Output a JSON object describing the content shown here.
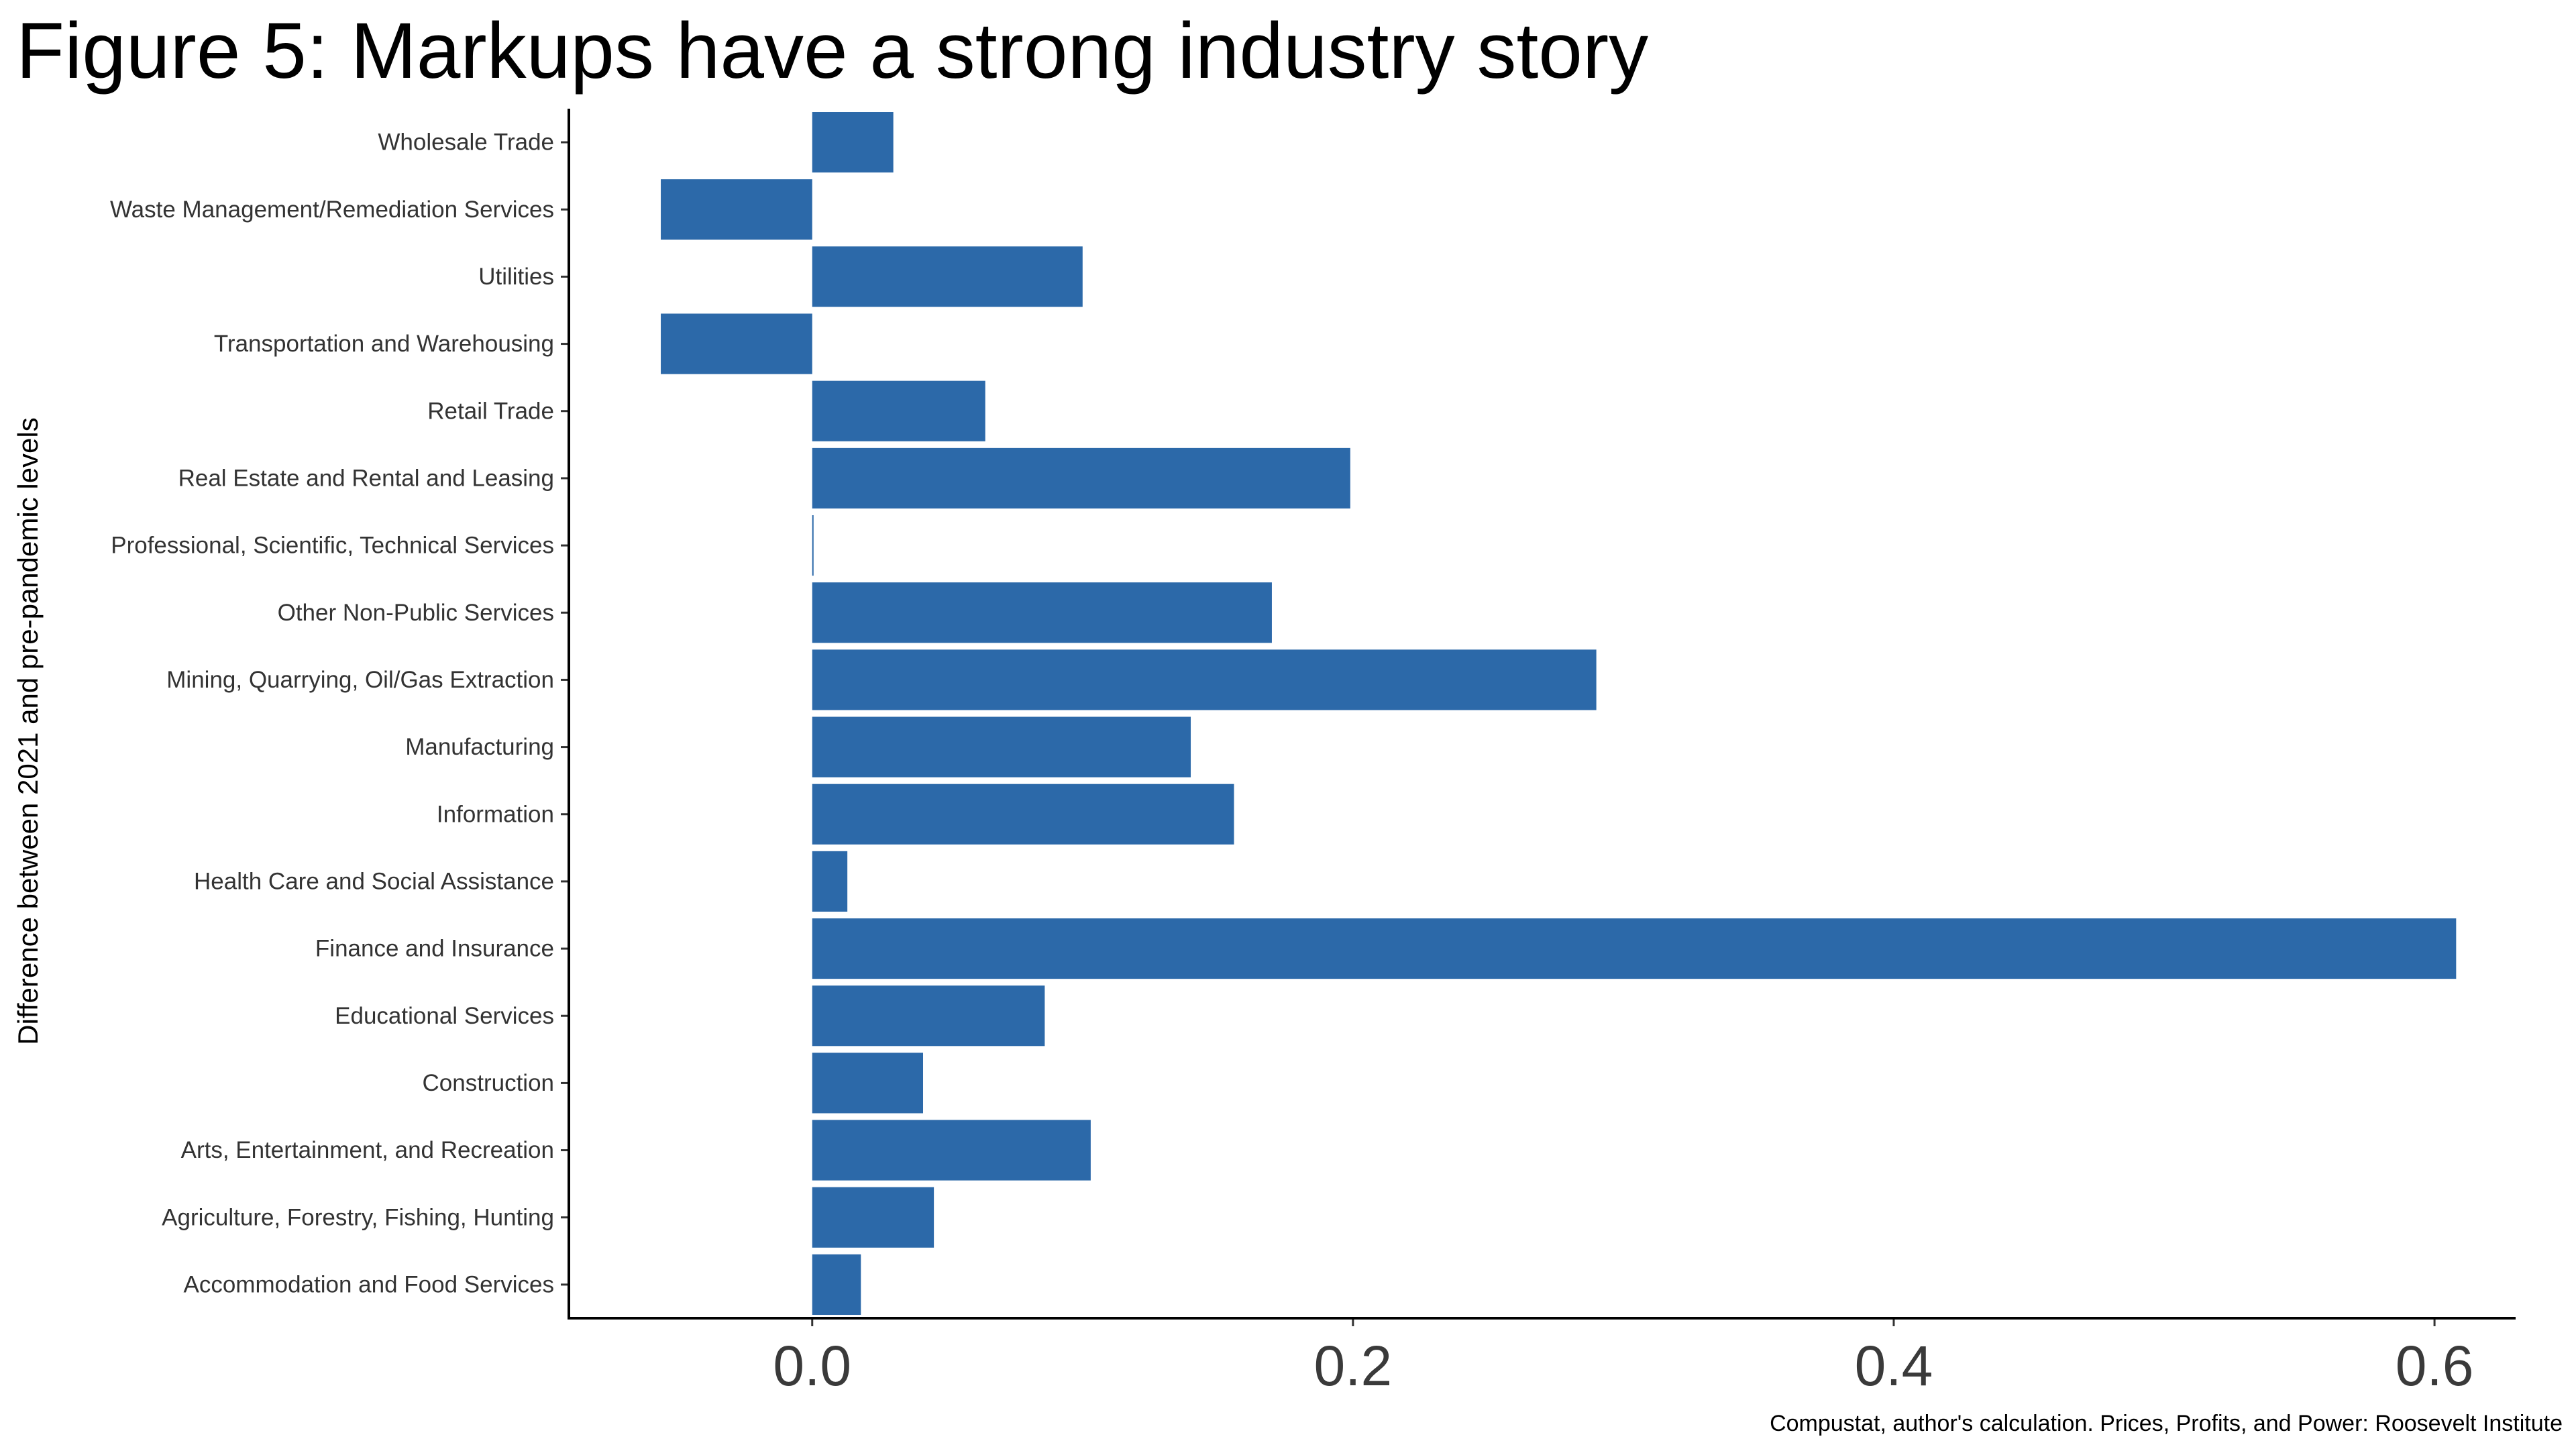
{
  "chart_data": {
    "type": "bar",
    "orientation": "horizontal",
    "title": "Figure 5: Markups have a strong industry story",
    "ylabel": "Difference between 2021 and pre-pandemic levels",
    "xlabel": "",
    "caption": "Compustat, author's calculation. Prices, Profits, and Power: Roosevelt Institute",
    "bar_color": "#2c69a9",
    "xlim": [
      -0.09,
      0.63
    ],
    "xticks": [
      "0.0",
      "0.2",
      "0.4",
      "0.6"
    ],
    "xtick_values": [
      0,
      0.2,
      0.4,
      0.6
    ],
    "grid": false,
    "categories": [
      "Wholesale Trade",
      "Waste Management/Remediation Services",
      "Utilities",
      "Transportation and Warehousing",
      "Retail Trade",
      "Real Estate and Rental and Leasing",
      "Professional, Scientific, Technical Services",
      "Other Non-Public Services",
      "Mining, Quarrying, Oil/Gas Extraction",
      "Manufacturing",
      "Information",
      "Health Care and Social Assistance",
      "Finance and Insurance",
      "Educational Services",
      "Construction",
      "Arts, Entertainment, and Recreation",
      "Agriculture, Forestry, Fishing, Hunting",
      "Accommodation and Food Services"
    ],
    "values": [
      0.03,
      -0.056,
      0.1,
      -0.056,
      0.064,
      0.199,
      0.0005,
      0.17,
      0.29,
      0.14,
      0.156,
      0.013,
      0.608,
      0.086,
      0.041,
      0.103,
      0.045,
      0.018
    ]
  }
}
